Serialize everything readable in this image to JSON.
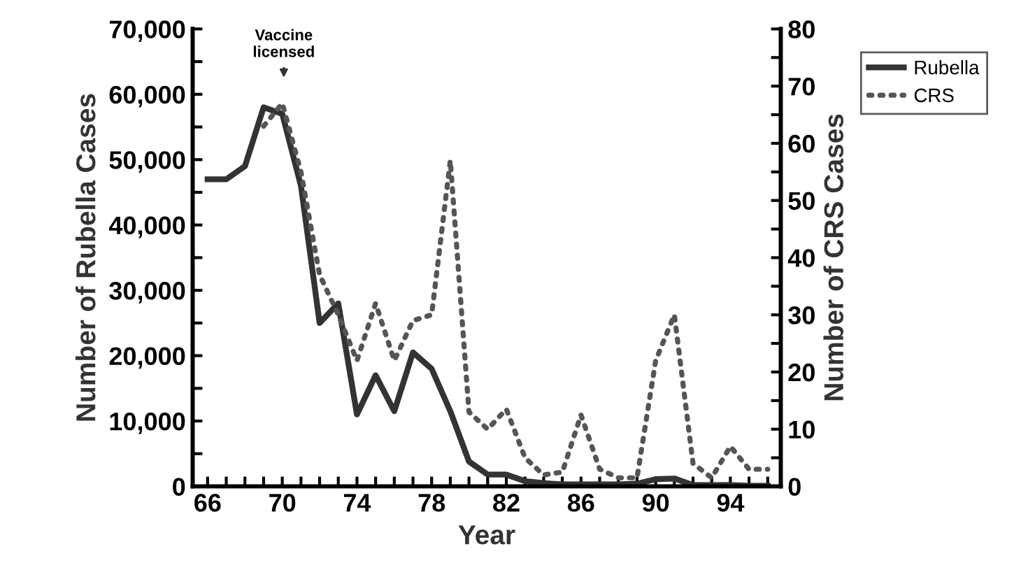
{
  "chart_data": {
    "type": "line",
    "xlabel": "Year",
    "ylabel": "Number of Rubella Cases",
    "y2label": "Number of CRS Cases",
    "x": [
      66,
      67,
      68,
      69,
      70,
      71,
      72,
      73,
      74,
      75,
      76,
      77,
      78,
      79,
      80,
      81,
      82,
      83,
      84,
      85,
      86,
      87,
      88,
      89,
      90,
      91,
      92,
      93,
      94,
      95,
      96
    ],
    "series": [
      {
        "name": "Rubella",
        "color": "#333333",
        "line_style": "solid",
        "values": [
          47000,
          47000,
          49000,
          58000,
          57000,
          46000,
          25000,
          28000,
          11000,
          17000,
          11500,
          20500,
          18000,
          11500,
          3800,
          1800,
          1800,
          800,
          500,
          300,
          300,
          300,
          300,
          400,
          1100,
          1200,
          200,
          200,
          200,
          100,
          100
        ]
      },
      {
        "name": "CRS",
        "color": "#555555",
        "line_style": "dotted",
        "axis": "y2",
        "x": [
          69,
          70,
          71,
          72,
          73,
          74,
          75,
          76,
          77,
          78,
          79,
          80,
          81,
          82,
          83,
          84,
          85,
          86,
          87,
          88,
          89,
          90,
          91,
          92,
          93,
          94,
          95,
          96
        ],
        "values": [
          63,
          67,
          55,
          37,
          30,
          22,
          32,
          22,
          29,
          30,
          57,
          13,
          10,
          13.5,
          5,
          2,
          2.5,
          12.5,
          3,
          1.5,
          1.5,
          22,
          30,
          4,
          1.5,
          7,
          3,
          3
        ]
      }
    ],
    "xlim": [
      65.2,
      96.7
    ],
    "xticks": [
      66,
      {
        "value": 67,
        "label": null
      },
      {
        "value": 68,
        "label": null
      },
      {
        "value": 69,
        "label": null
      },
      70,
      {
        "value": 71,
        "label": null
      },
      {
        "value": 72,
        "label": null
      },
      {
        "value": 73,
        "label": null
      },
      74,
      {
        "value": 75,
        "label": null
      },
      {
        "value": 76,
        "label": null
      },
      {
        "value": 77,
        "label": null
      },
      78,
      {
        "value": 79,
        "label": null
      },
      {
        "value": 80,
        "label": null
      },
      {
        "value": 81,
        "label": null
      },
      82,
      {
        "value": 83,
        "label": null
      },
      {
        "value": 84,
        "label": null
      },
      {
        "value": 85,
        "label": null
      },
      86,
      {
        "value": 87,
        "label": null
      },
      {
        "value": 88,
        "label": null
      },
      {
        "value": 89,
        "label": null
      },
      90,
      {
        "value": 91,
        "label": null
      },
      {
        "value": 92,
        "label": null
      },
      {
        "value": 93,
        "label": null
      },
      94,
      {
        "value": 95,
        "label": null
      },
      {
        "value": 96,
        "label": null
      }
    ],
    "ylim": [
      0,
      70000
    ],
    "yticks": [
      {
        "value": 0,
        "label": "0"
      },
      {
        "value": 5000,
        "label": null
      },
      {
        "value": 10000,
        "label": "10,000"
      },
      {
        "value": 15000,
        "label": null
      },
      {
        "value": 20000,
        "label": "20,000"
      },
      {
        "value": 25000,
        "label": null
      },
      {
        "value": 30000,
        "label": "30,000"
      },
      {
        "value": 35000,
        "label": null
      },
      {
        "value": 40000,
        "label": "40,000"
      },
      {
        "value": 45000,
        "label": null
      },
      {
        "value": 50000,
        "label": "50,000"
      },
      {
        "value": 55000,
        "label": null
      },
      {
        "value": 60000,
        "label": "60,000"
      },
      {
        "value": 65000,
        "label": null
      },
      {
        "value": 70000,
        "label": "70,000"
      }
    ],
    "y2lim": [
      0,
      80
    ],
    "y2ticks": [
      0,
      {
        "value": 5,
        "label": null
      },
      10,
      {
        "value": 15,
        "label": null
      },
      20,
      {
        "value": 25,
        "label": null
      },
      30,
      {
        "value": 35,
        "label": null
      },
      40,
      {
        "value": 45,
        "label": null
      },
      50,
      {
        "value": 55,
        "label": null
      },
      60,
      {
        "value": 65,
        "label": null
      },
      70,
      {
        "value": 75,
        "label": null
      },
      80
    ],
    "annotations": [
      "Vaccine\nlicensed"
    ],
    "legend": "right",
    "grid": false,
    "marker": "none"
  }
}
